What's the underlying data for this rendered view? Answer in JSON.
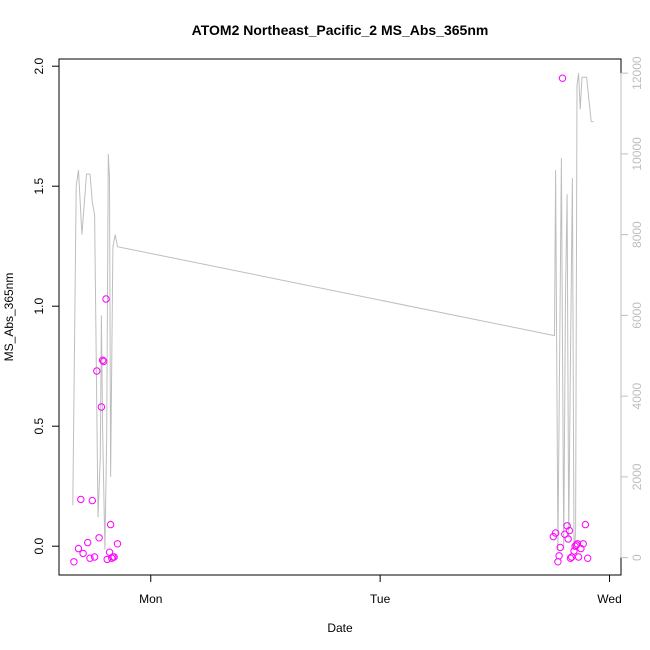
{
  "chart_data": {
    "type": "scatter",
    "title": "ATOM2 Northeast_Pacific_2 MS_Abs_365nm",
    "xlabel": "Date",
    "ylabel": "MS_Abs_365nm",
    "xticks": [
      {
        "label": "Mon",
        "value": 1.0
      },
      {
        "label": "Tue",
        "value": 2.0
      },
      {
        "label": "Wed",
        "value": 3.0
      }
    ],
    "xlim": [
      0.6,
      3.05
    ],
    "y_left": {
      "lim": [
        -0.12,
        2.03
      ],
      "ticks": [
        0.0,
        0.5,
        1.0,
        1.5,
        2.0
      ],
      "tick_labels": [
        "0.0",
        "0.5",
        "1.0",
        "1.5",
        "2.0"
      ]
    },
    "y_right": {
      "lim": [
        -430,
        12350
      ],
      "ticks": [
        0,
        2000,
        4000,
        6000,
        8000,
        10000,
        12000
      ],
      "tick_labels": [
        "0",
        "2000",
        "4000",
        "6000",
        "8000",
        "10000",
        "12000"
      ]
    },
    "grid": false,
    "colors": {
      "points": "#ff00ff",
      "line": "#bebebe",
      "axis": "#000000",
      "right_axis": "#bebebe"
    },
    "series": [
      {
        "style": "points",
        "axis": "left",
        "x": [
          0.665,
          0.685,
          0.695,
          0.705,
          0.725,
          0.735,
          0.745,
          0.755,
          0.765,
          0.775,
          0.785,
          0.79,
          0.795,
          0.805,
          0.81,
          0.82,
          0.825,
          0.83,
          0.835,
          0.84,
          0.855,
          2.755,
          2.765,
          2.775,
          2.78,
          2.785,
          2.795,
          2.805,
          2.815,
          2.82,
          2.825,
          2.83,
          2.835,
          2.845,
          2.85,
          2.855,
          2.86,
          2.865,
          2.875,
          2.885,
          2.895,
          2.905
        ],
        "y": [
          -0.065,
          -0.01,
          0.195,
          -0.03,
          0.015,
          -0.05,
          0.19,
          -0.045,
          0.73,
          0.035,
          0.58,
          0.775,
          0.77,
          1.03,
          -0.055,
          -0.025,
          0.09,
          -0.05,
          -0.045,
          -0.045,
          0.01,
          0.04,
          0.055,
          -0.065,
          -0.04,
          -0.005,
          1.95,
          0.05,
          0.085,
          0.03,
          0.065,
          -0.05,
          -0.045,
          -0.02,
          0.0,
          0.005,
          0.01,
          -0.045,
          -0.01,
          0.01,
          0.09,
          -0.05
        ]
      },
      {
        "style": "line",
        "axis": "right",
        "x": [
          0.66,
          0.675,
          0.685,
          0.7,
          0.72,
          0.735,
          0.745,
          0.755,
          0.762,
          0.77,
          0.78,
          0.785,
          0.79,
          0.8,
          0.808,
          0.815,
          0.82,
          0.825,
          0.835,
          0.845,
          0.855,
          2.76,
          2.765,
          2.775,
          2.79,
          2.8,
          2.808,
          2.815,
          2.822,
          2.83,
          2.838,
          2.845,
          2.852,
          2.858,
          2.865,
          2.872,
          2.88,
          2.9,
          2.92,
          2.93
        ],
        "y": [
          1300,
          9200,
          9600,
          8000,
          9500,
          9500,
          8800,
          8500,
          5000,
          1000,
          2500,
          6000,
          3200,
          200,
          3000,
          10000,
          9400,
          2000,
          7700,
          8000,
          7700,
          5500,
          9600,
          200,
          9900,
          200,
          6500,
          9000,
          500,
          5000,
          9400,
          200,
          600,
          11700,
          12000,
          11100,
          11900,
          11900,
          10800,
          10800
        ]
      }
    ]
  }
}
